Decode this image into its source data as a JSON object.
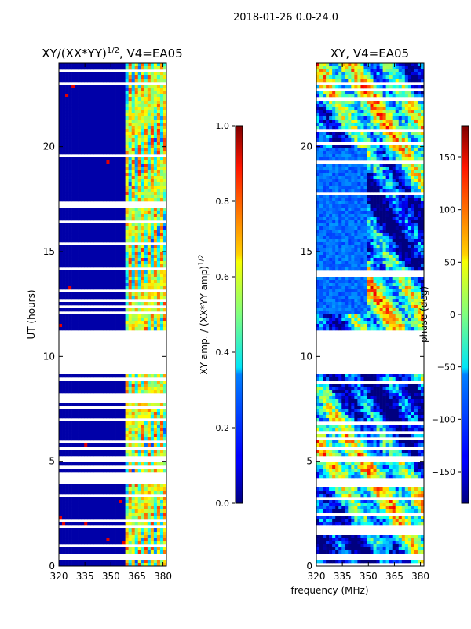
{
  "figure_title": "2018-01-26 0.0-24.0",
  "shared_xlabel": "frequency (MHz)",
  "chart_data": [
    {
      "type": "heatmap",
      "title_main": "XY/(XX*YY)",
      "title_sup": "1/2",
      "title_tail": ", V4=EA05",
      "ylabel": "UT (hours)",
      "xlim": [
        320,
        382
      ],
      "ylim": [
        0,
        24
      ],
      "xticks": [
        320,
        335,
        350,
        365,
        380
      ],
      "yticks": [
        0,
        5,
        10,
        15,
        20
      ],
      "flagged_ut_range": [
        9.1,
        11.2
      ],
      "colorbar": {
        "label_main": "XY amp. / (XX*YY amp)",
        "label_sup": "1/2",
        "range": [
          0.0,
          1.0
        ],
        "ticks": [
          "0.0",
          "0.2",
          "0.4",
          "0.6",
          "0.8",
          "1.0"
        ]
      }
    },
    {
      "type": "heatmap",
      "title": "XY, V4=EA05",
      "xlim": [
        320,
        382
      ],
      "ylim": [
        0,
        24
      ],
      "xticks": [
        320,
        335,
        350,
        365,
        380
      ],
      "yticks": [
        0,
        5,
        10,
        15,
        20
      ],
      "flagged_ut_range": [
        9.1,
        11.2
      ],
      "colorbar": {
        "label": "phase (deg)",
        "range": [
          -180,
          180
        ],
        "ticks": [
          "−150",
          "−100",
          "−50",
          "0",
          "50",
          "100",
          "150"
        ]
      }
    }
  ],
  "colormap": "jet"
}
